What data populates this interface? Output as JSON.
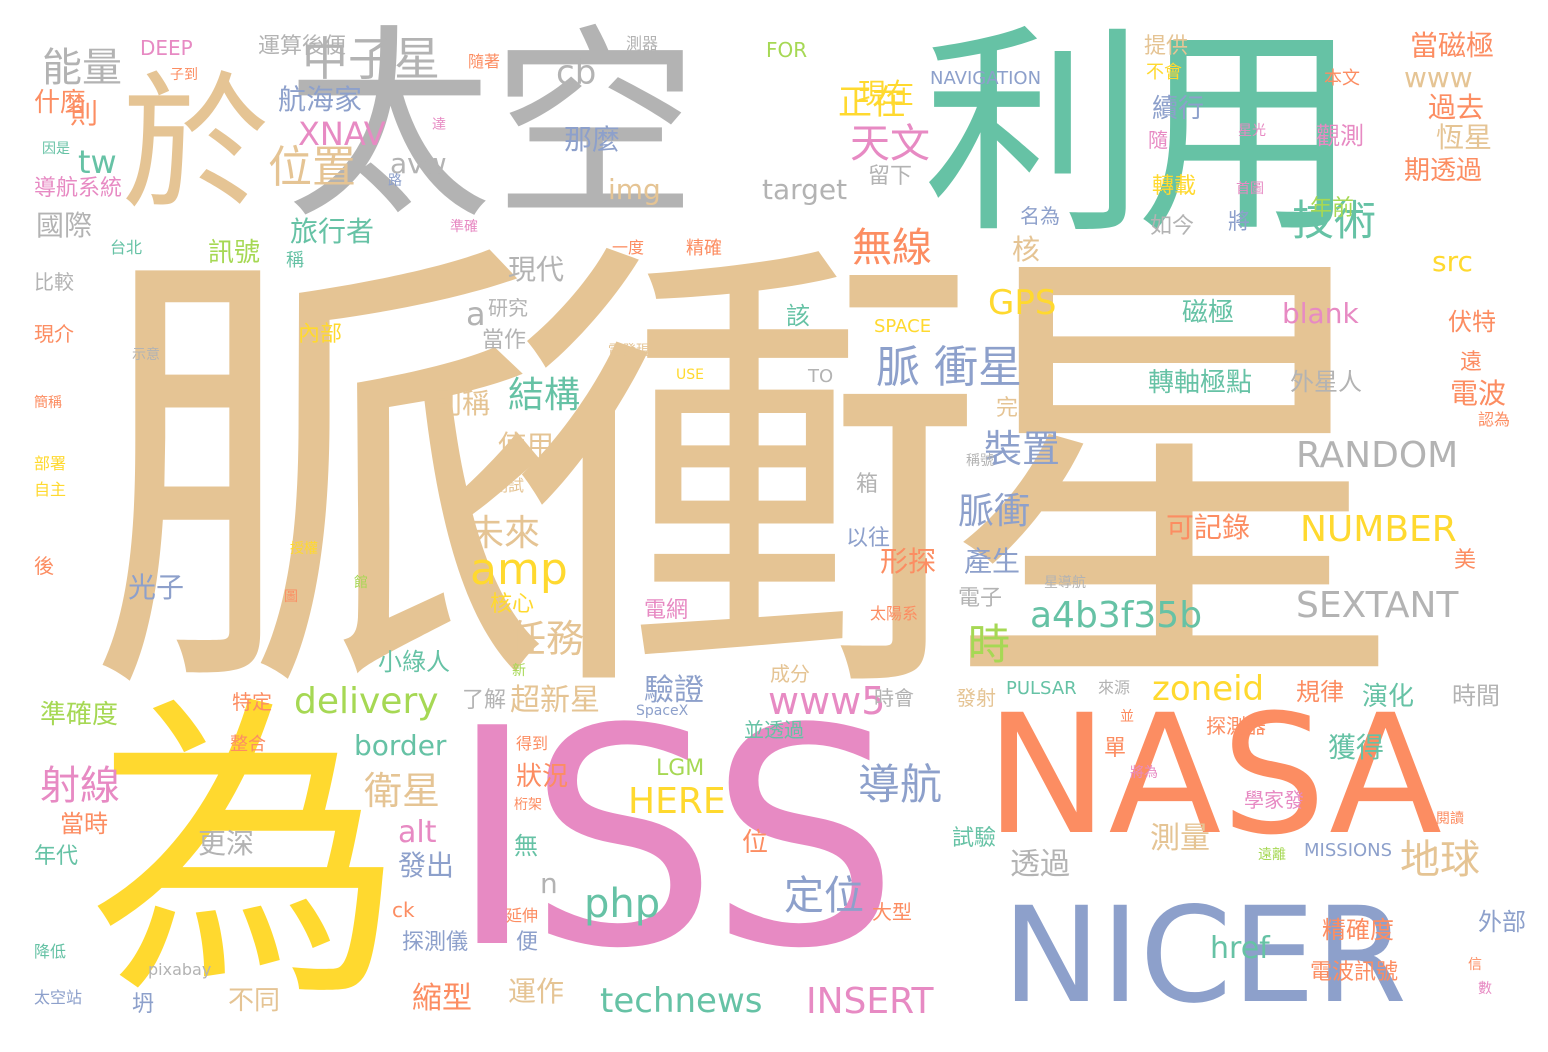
{
  "palette": {
    "tan": "#e5c494",
    "gray": "#b3b3b3",
    "teal": "#66c2a5",
    "yellow": "#ffd92f",
    "pink": "#e78ac3",
    "orange": "#fc8d62",
    "blue": "#8da0cb",
    "green": "#a6d854"
  },
  "words": [
    "脈衝星",
    "太空",
    "利用",
    "於",
    "為",
    "ISS",
    "NASA",
    "NICER",
    "中子星",
    "能量",
    "cb",
    "XNAV",
    "位置",
    "avw",
    "tw",
    "航海家",
    "天文",
    "技術",
    "無線",
    "旅行者",
    "訊號",
    "現代",
    "a",
    "研究",
    "GPS",
    "blank",
    "磁極",
    "脈 衝星",
    "結構",
    "RANDOM",
    "裝置",
    "脈衝",
    "NUMBER",
    "amp",
    "未來",
    "SEXTANT",
    "任務",
    "a4b3f35b",
    "時",
    "delivery",
    "www5",
    "zoneid",
    "導航",
    "衛星",
    "射線",
    "HERE",
    "php",
    "地球",
    "定位",
    "technews",
    "INSERT",
    "href",
    "border",
    "LGM",
    "那麼",
    "img",
    "target",
    "現在",
    "www",
    "過去",
    "恆星",
    "觀測",
    "期透過",
    "年前",
    "src",
    "伏特",
    "轉軸極點",
    "外星人",
    "電波",
    "掃過",
    "當磁極",
    "正在",
    "別稱",
    "使用",
    "產生",
    "驗證",
    "超新星",
    "更深",
    "發出",
    "獲得",
    "測量",
    "透過",
    "縮型",
    "運作",
    "精確度",
    "電波訊號",
    "DEEP",
    "FOR",
    "NAVIGATION",
    "SPACE",
    "PULSAR",
    "MISSIONS",
    "SpaceX",
    "USE",
    "TO",
    "pixabay",
    "新",
    "則",
    "什麼",
    "國際",
    "比較",
    "現介",
    "簡稱",
    "部署",
    "自主",
    "後",
    "光子",
    "核心",
    "當時",
    "年代",
    "準確度",
    "降低",
    "太空站",
    "坍",
    "不同",
    "探測儀",
    "ck",
    "n",
    "alt",
    "狀況",
    "無",
    "便",
    "位",
    "試驗",
    "大型",
    "時會",
    "特定",
    "了解",
    "整合",
    "小綠人",
    "內部",
    "當作",
    "該",
    "形探",
    "電子",
    "並透過",
    "成分",
    "規律",
    "演化",
    "時間",
    "探測器",
    "學家發",
    "閱讀",
    "遠離",
    "信",
    "數",
    "外部",
    "美",
    "認為",
    "遠",
    "可記錄",
    "電網",
    "太陽系",
    "精確",
    "一度",
    "將",
    "如今",
    "名為",
    "留下",
    "核",
    "續行",
    "提供",
    "不會",
    "本文",
    "星光",
    "隨",
    "轉載",
    "首圖",
    "示意",
    "電發現",
    "完成",
    "稱號",
    "箱",
    "以往",
    "來源",
    "並",
    "單",
    "將為",
    "得到",
    "延伸",
    "桁架",
    "發射",
    "館",
    "圖",
    "授權",
    "星導航",
    "導航系統",
    "台北",
    "準確",
    "路",
    "因是",
    "達",
    "隨著",
    "子到",
    "稱",
    "運算後便",
    "測器",
    "測試"
  ]
}
